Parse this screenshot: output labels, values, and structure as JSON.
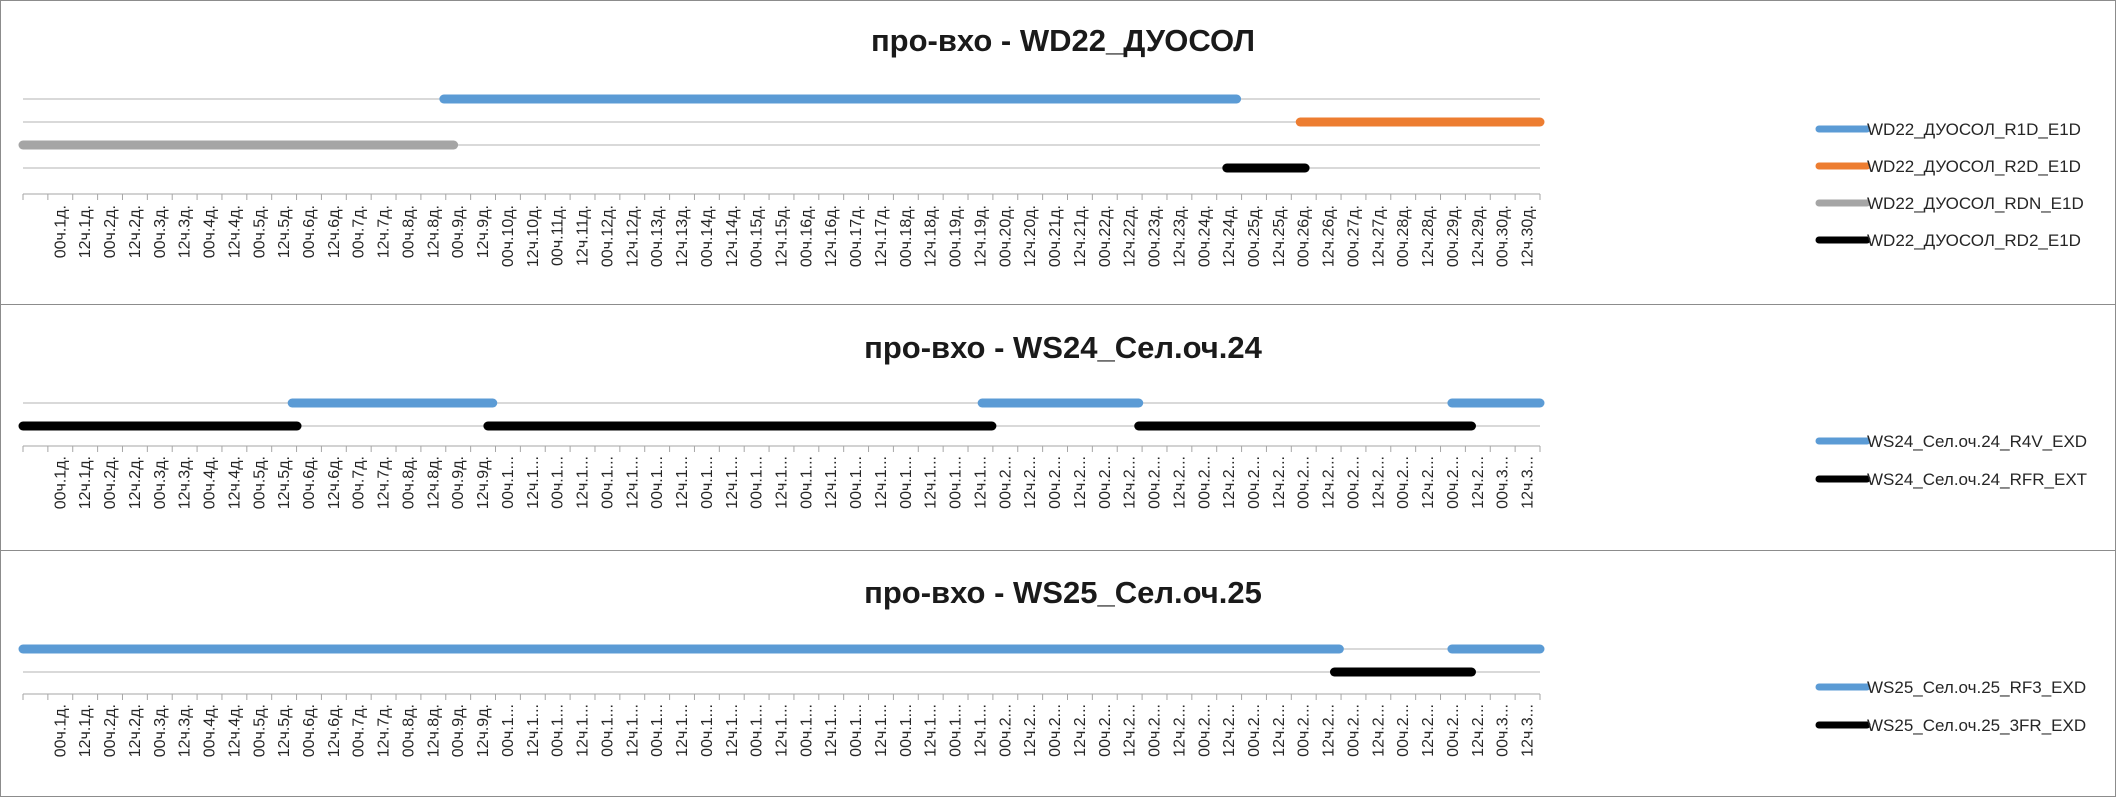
{
  "chart_data": [
    {
      "type": "gantt",
      "title": "про-вхо - WD22_ДУОСОЛ",
      "x_ticks": [
        "00ч.1д.",
        "12ч.1д.",
        "00ч.2д.",
        "12ч.2д.",
        "00ч.3д.",
        "12ч.3д.",
        "00ч.4д.",
        "12ч.4д.",
        "00ч.5д.",
        "12ч.5д.",
        "00ч.6д.",
        "12ч.6д.",
        "00ч.7д.",
        "12ч.7д.",
        "00ч.8д.",
        "12ч.8д.",
        "00ч.9д.",
        "12ч.9д.",
        "00ч.10д.",
        "12ч.10д.",
        "00ч.11д.",
        "12ч.11д.",
        "00ч.12д.",
        "12ч.12д.",
        "00ч.13д.",
        "12ч.13д.",
        "00ч.14д.",
        "12ч.14д.",
        "00ч.15д.",
        "12ч.15д.",
        "00ч.16д.",
        "12ч.16д.",
        "00ч.17д.",
        "12ч.17д.",
        "00ч.18д.",
        "12ч.18д.",
        "00ч.19д.",
        "12ч.19д.",
        "00ч.20д.",
        "12ч.20д.",
        "00ч.21д.",
        "12ч.21д.",
        "00ч.22д.",
        "12ч.22д.",
        "00ч.23д.",
        "12ч.23д.",
        "00ч.24д.",
        "12ч.24д.",
        "00ч.25д.",
        "12ч.25д.",
        "00ч.26д.",
        "12ч.26д.",
        "00ч.27д.",
        "12ч.27д.",
        "00ч.28д.",
        "12ч.28д.",
        "00ч.29д.",
        "12ч.29д.",
        "00ч.30д.",
        "12ч.30д."
      ],
      "series": [
        {
          "name": "WD22_ДУОСОЛ_R1D_E1D",
          "color": "#5b9bd5",
          "intervals": [
            [
              8.6,
              24.8
            ]
          ]
        },
        {
          "name": "WD22_ДУОСОЛ_R2D_E1D",
          "color": "#ed7d31",
          "intervals": [
            [
              26.1,
              31.0
            ]
          ]
        },
        {
          "name": "WD22_ДУОСОЛ_RDN_E1D",
          "color": "#a5a5a5",
          "intervals": [
            [
              0.0,
              8.8
            ]
          ]
        },
        {
          "name": "WD22_ДУОСОЛ_RD2_E1D",
          "color": "#000000",
          "intervals": [
            [
              24.6,
              26.2
            ]
          ]
        }
      ],
      "legend": "right"
    },
    {
      "type": "gantt",
      "title": "про-вхо - WS24_Сел.оч.24",
      "x_ticks": [
        "00ч.1д.",
        "12ч.1д.",
        "00ч.2д.",
        "12ч.2д.",
        "00ч.3д.",
        "12ч.3д.",
        "00ч.4д.",
        "12ч.4д.",
        "00ч.5д.",
        "12ч.5д.",
        "00ч.6д.",
        "12ч.6д.",
        "00ч.7д.",
        "12ч.7д.",
        "00ч.8д.",
        "12ч.8д.",
        "00ч.9д.",
        "12ч.9д.",
        "00ч.1...",
        "12ч.1...",
        "00ч.1...",
        "12ч.1...",
        "00ч.1...",
        "12ч.1...",
        "00ч.1...",
        "12ч.1...",
        "00ч.1...",
        "12ч.1...",
        "00ч.1...",
        "12ч.1...",
        "00ч.1...",
        "12ч.1...",
        "00ч.1...",
        "12ч.1...",
        "00ч.1...",
        "12ч.1...",
        "00ч.1...",
        "12ч.1...",
        "00ч.2...",
        "12ч.2...",
        "00ч.2...",
        "12ч.2...",
        "00ч.2...",
        "12ч.2...",
        "00ч.2...",
        "12ч.2...",
        "00ч.2...",
        "12ч.2...",
        "00ч.2...",
        "12ч.2...",
        "00ч.2...",
        "12ч.2...",
        "00ч.2...",
        "12ч.2...",
        "00ч.2...",
        "12ч.2...",
        "00ч.2...",
        "12ч.2...",
        "00ч.3...",
        "12ч.3..."
      ],
      "series": [
        {
          "name": "WS24_Сел.оч.24_R4V_EXD",
          "color": "#5b9bd5",
          "intervals": [
            [
              5.5,
              9.6
            ],
            [
              19.6,
              22.8
            ],
            [
              29.2,
              31.0
            ]
          ]
        },
        {
          "name": "WS24_Сел.оч.24_RFR_EXT",
          "color": "#000000",
          "intervals": [
            [
              0.0,
              5.6
            ],
            [
              9.5,
              19.8
            ],
            [
              22.8,
              29.6
            ]
          ]
        }
      ],
      "legend": "right"
    },
    {
      "type": "gantt",
      "title": "про-вхо - WS25_Сел.оч.25",
      "x_ticks": [
        "00ч.1д.",
        "12ч.1д.",
        "00ч.2д.",
        "12ч.2д.",
        "00ч.3д.",
        "12ч.3д.",
        "00ч.4д.",
        "12ч.4д.",
        "00ч.5д.",
        "12ч.5д.",
        "00ч.6д.",
        "12ч.6д.",
        "00ч.7д.",
        "12ч.7д.",
        "00ч.8д.",
        "12ч.8д.",
        "00ч.9д.",
        "12ч.9д.",
        "00ч.1...",
        "12ч.1...",
        "00ч.1...",
        "12ч.1...",
        "00ч.1...",
        "12ч.1...",
        "00ч.1...",
        "12ч.1...",
        "00ч.1...",
        "12ч.1...",
        "00ч.1...",
        "12ч.1...",
        "00ч.1...",
        "12ч.1...",
        "00ч.1...",
        "12ч.1...",
        "00ч.1...",
        "12ч.1...",
        "00ч.1...",
        "12ч.1...",
        "00ч.2...",
        "12ч.2...",
        "00ч.2...",
        "12ч.2...",
        "00ч.2...",
        "12ч.2...",
        "00ч.2...",
        "12ч.2...",
        "00ч.2...",
        "12ч.2...",
        "00ч.2...",
        "12ч.2...",
        "00ч.2...",
        "12ч.2...",
        "00ч.2...",
        "12ч.2...",
        "00ч.2...",
        "12ч.2...",
        "00ч.2...",
        "12ч.2...",
        "00ч.3...",
        "12ч.3..."
      ],
      "series": [
        {
          "name": "WS25_Сел.оч.25_RF3_EXD",
          "color": "#5b9bd5",
          "intervals": [
            [
              0.0,
              26.9
            ],
            [
              29.2,
              31.0
            ]
          ]
        },
        {
          "name": "WS25_Сел.оч.25_3FR_EXD",
          "color": "#000000",
          "intervals": [
            [
              26.8,
              29.6
            ]
          ]
        }
      ],
      "legend": "right"
    }
  ]
}
